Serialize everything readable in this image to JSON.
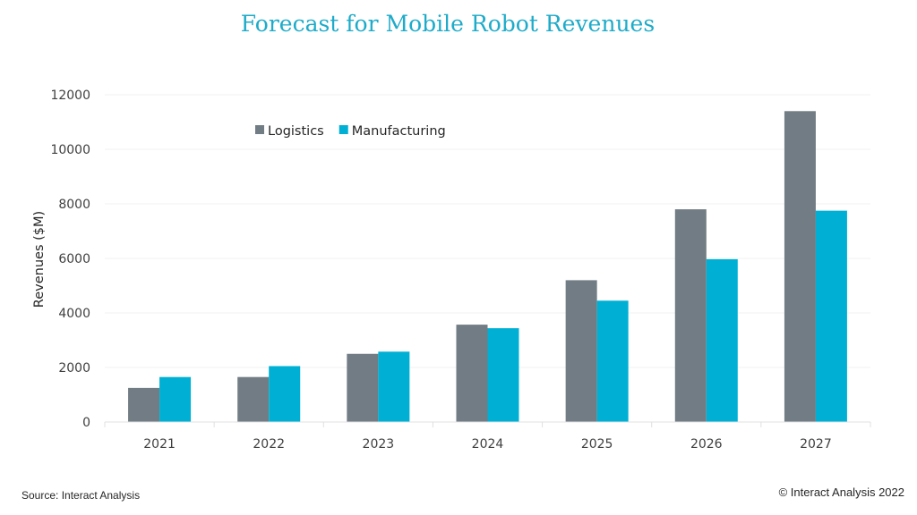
{
  "chart_data": {
    "type": "bar",
    "title": "Forecast for Mobile Robot Revenues",
    "xlabel": "",
    "ylabel": "Revenues ($M)",
    "ylim": [
      0,
      12000
    ],
    "yticks": [
      0,
      2000,
      4000,
      6000,
      8000,
      10000,
      12000
    ],
    "grid": true,
    "legend_position": "top-left",
    "categories": [
      "2021",
      "2022",
      "2023",
      "2024",
      "2025",
      "2026",
      "2027"
    ],
    "series": [
      {
        "name": "Logistics",
        "color": "#717c84",
        "values": [
          1250,
          1650,
          2500,
          3570,
          5200,
          7800,
          11400
        ]
      },
      {
        "name": "Manufacturing",
        "color": "#00b0d4",
        "values": [
          1650,
          2050,
          2580,
          3440,
          4450,
          5970,
          7750
        ]
      }
    ]
  },
  "footer": {
    "source": "Source: Interact Analysis",
    "copyright": "© Interact Analysis 2022"
  }
}
